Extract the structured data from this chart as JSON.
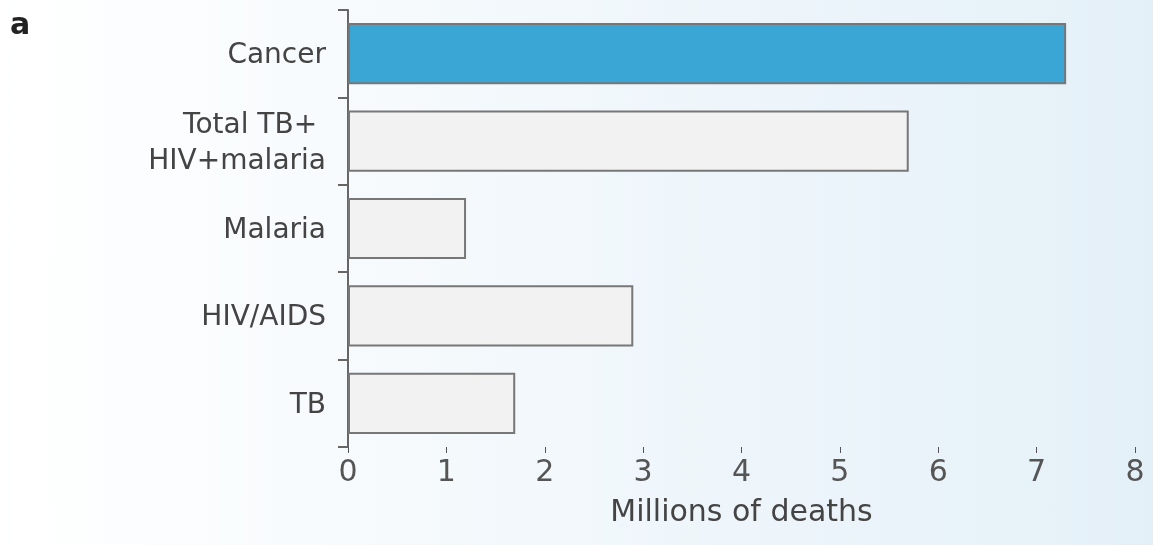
{
  "chart_data": {
    "type": "bar",
    "orientation": "horizontal",
    "xlabel": "Millions of deaths",
    "annotations": [
      "a"
    ],
    "categories": [
      "Cancer",
      "Total TB+ HIV+malaria",
      "Malaria",
      "HIV/AIDS",
      "TB"
    ],
    "values": [
      7.3,
      5.7,
      1.2,
      2.9,
      1.7
    ],
    "colors": [
      "#3aa6d6",
      "#f2f2f2",
      "#f2f2f2",
      "#f2f2f2",
      "#f2f2f2"
    ],
    "xlim": [
      0,
      8
    ],
    "xticks": [
      0,
      1,
      2,
      3,
      4,
      5,
      6,
      7,
      8
    ],
    "grid": false
  }
}
